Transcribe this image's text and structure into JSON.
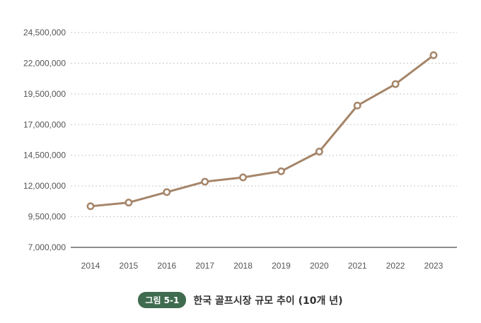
{
  "chart_data": {
    "type": "line",
    "x": [
      "2014",
      "2015",
      "2016",
      "2017",
      "2018",
      "2019",
      "2020",
      "2021",
      "2022",
      "2023"
    ],
    "series": [
      {
        "values": [
          10350000,
          10650000,
          11500000,
          12350000,
          12700000,
          13200000,
          14800000,
          18550000,
          20300000,
          22650000
        ]
      }
    ],
    "y_ticks": [
      7000000,
      9500000,
      12000000,
      14500000,
      17000000,
      19500000,
      22000000,
      24500000
    ],
    "y_tick_labels": [
      "7,000,000",
      "9,500,000",
      "12,000,000",
      "14,500,000",
      "17,000,000",
      "19,500,000",
      "22,000,000",
      "24,500,000"
    ],
    "ylim": [
      7000000,
      24500000
    ],
    "grid": "horizontal dotted",
    "colors": {
      "line": "#a58569",
      "marker_fill": "#ffffff",
      "grid": "#c8c8c8",
      "axis": "#666666"
    }
  },
  "caption": {
    "badge": "그림 5-1",
    "title": "한국 골프시장 규모 추이 (10개 년)",
    "badge_color": "#3f6b4e"
  }
}
